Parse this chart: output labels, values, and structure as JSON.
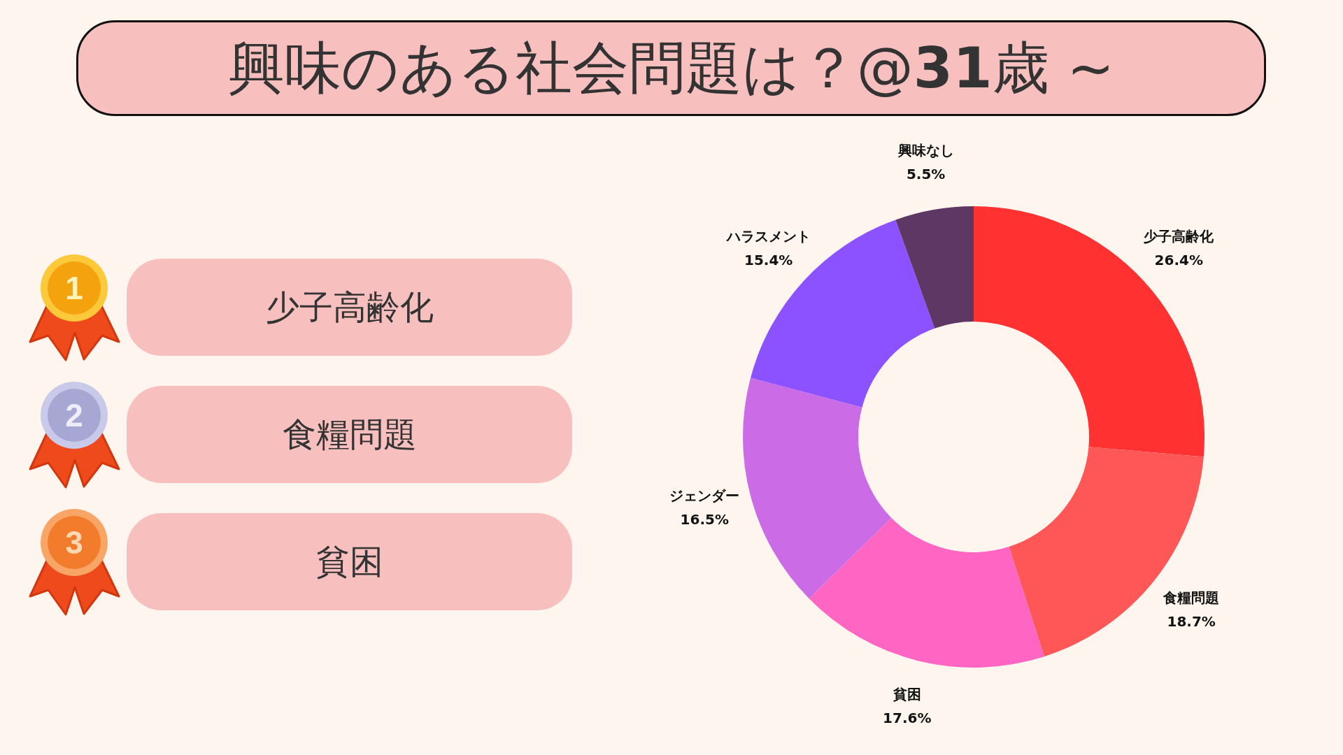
{
  "chart_data": [
    {
      "type": "other",
      "categories": [
        "少子高齢化",
        "食糧問題",
        "貧困"
      ],
      "annotations": [
        "1",
        "2",
        "3"
      ]
    },
    {
      "type": "donut",
      "title": "興味のある社会問題は？@31歳 ~",
      "categories": [
        "少子高齢化",
        "食糧問題",
        "貧困",
        "ジェンダー",
        "ハラスメント",
        "興味なし"
      ],
      "values": [
        26.4,
        18.7,
        17.6,
        16.5,
        15.4,
        5.5
      ],
      "colors": [
        "#ff3131",
        "#ff5757",
        "#ff66c4",
        "#cb6ce6",
        "#8c52ff",
        "#5e3764"
      ],
      "value_labels": [
        "26.4%",
        "18.7%",
        "17.6%",
        "16.5%",
        "15.4%",
        "5.5%"
      ]
    }
  ]
}
